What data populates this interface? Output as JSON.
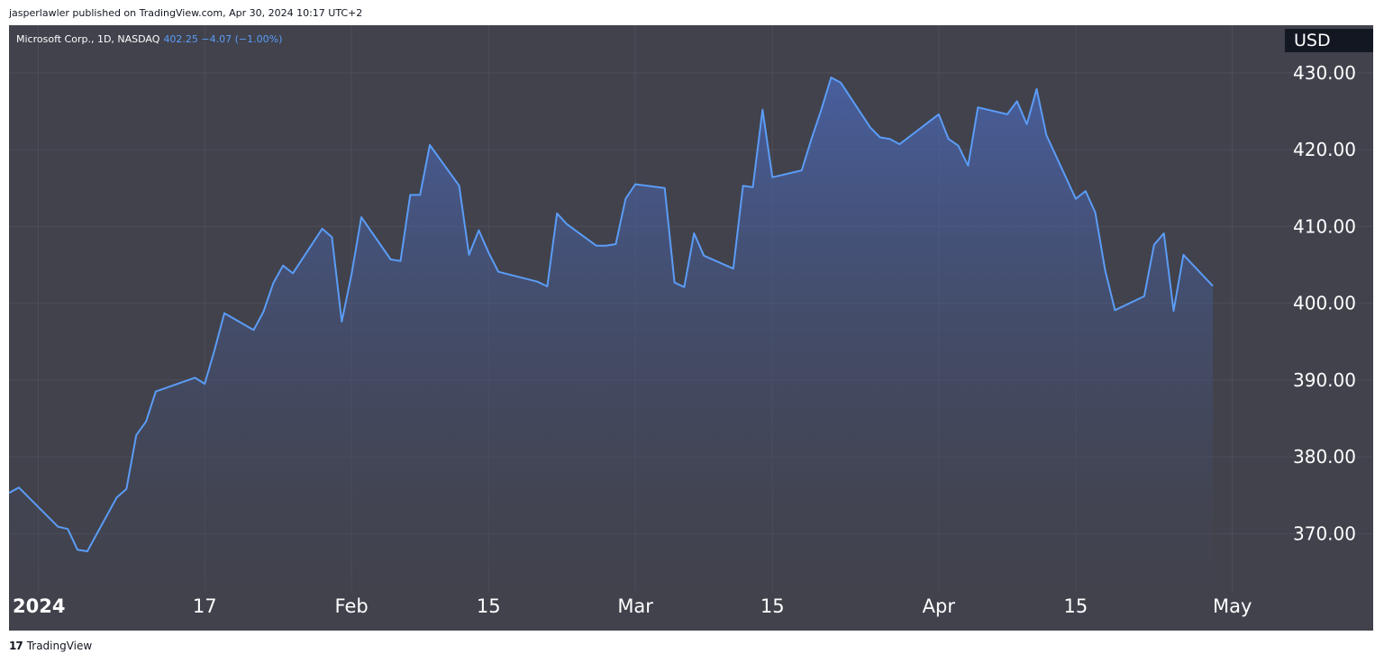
{
  "header": {
    "published_by": "jasperlawler published on TradingView.com, Apr 30, 2024 10:17 UTC+2"
  },
  "legend": {
    "symbol": "Microsoft Corp., 1D, NASDAQ",
    "quote": "402.25  −4.07 (−1.00%)"
  },
  "currency": "USD",
  "footer": {
    "brand": "TradingView",
    "logo_icon": "tradingview-logo-icon"
  },
  "colors": {
    "background": "#41424c",
    "line": "#5b9cf6",
    "grid": "#4d4e58",
    "text": "#ffffff",
    "badge": "#131722"
  },
  "chart_data": {
    "type": "area",
    "title": "",
    "xlabel": "",
    "ylabel": "",
    "x_tick_labels": [
      "2024",
      "17",
      "Feb",
      "15",
      "Mar",
      "15",
      "Apr",
      "15",
      "May"
    ],
    "y_tick_labels": [
      "430.00",
      "420.00",
      "410.00",
      "400.00",
      "390.00",
      "380.00",
      "370.00"
    ],
    "y_ticks": [
      430,
      420,
      410,
      400,
      390,
      380,
      370
    ],
    "ylim": [
      362.3,
      436.2
    ],
    "xlim": [
      "2023-12-28",
      "2024-05-06"
    ],
    "grid": true,
    "series": [
      {
        "values": [
          [
            "2023-12-28",
            375.3
          ],
          [
            "2023-12-29",
            376.0
          ],
          [
            "2024-01-02",
            370.9
          ],
          [
            "2024-01-03",
            370.6
          ],
          [
            "2024-01-04",
            367.9
          ],
          [
            "2024-01-05",
            367.7
          ],
          [
            "2024-01-08",
            374.7
          ],
          [
            "2024-01-09",
            375.8
          ],
          [
            "2024-01-10",
            382.8
          ],
          [
            "2024-01-11",
            384.6
          ],
          [
            "2024-01-12",
            388.5
          ],
          [
            "2024-01-16",
            390.3
          ],
          [
            "2024-01-17",
            389.5
          ],
          [
            "2024-01-18",
            393.9
          ],
          [
            "2024-01-19",
            398.7
          ],
          [
            "2024-01-22",
            396.5
          ],
          [
            "2024-01-23",
            398.9
          ],
          [
            "2024-01-24",
            402.6
          ],
          [
            "2024-01-25",
            404.9
          ],
          [
            "2024-01-26",
            403.9
          ],
          [
            "2024-01-29",
            409.7
          ],
          [
            "2024-01-30",
            408.6
          ],
          [
            "2024-01-31",
            397.6
          ],
          [
            "2024-02-01",
            403.8
          ],
          [
            "2024-02-02",
            411.2
          ],
          [
            "2024-02-05",
            405.7
          ],
          [
            "2024-02-06",
            405.5
          ],
          [
            "2024-02-07",
            414.1
          ],
          [
            "2024-02-08",
            414.1
          ],
          [
            "2024-02-09",
            420.6
          ],
          [
            "2024-02-12",
            415.3
          ],
          [
            "2024-02-13",
            406.3
          ],
          [
            "2024-02-14",
            409.5
          ],
          [
            "2024-02-15",
            406.6
          ],
          [
            "2024-02-16",
            404.1
          ],
          [
            "2024-02-20",
            402.8
          ],
          [
            "2024-02-21",
            402.2
          ],
          [
            "2024-02-22",
            411.7
          ],
          [
            "2024-02-23",
            410.3
          ],
          [
            "2024-02-26",
            407.5
          ],
          [
            "2024-02-27",
            407.5
          ],
          [
            "2024-02-28",
            407.7
          ],
          [
            "2024-02-29",
            413.6
          ],
          [
            "2024-03-01",
            415.5
          ],
          [
            "2024-03-04",
            415.0
          ],
          [
            "2024-03-05",
            402.7
          ],
          [
            "2024-03-06",
            402.1
          ],
          [
            "2024-03-07",
            409.1
          ],
          [
            "2024-03-08",
            406.2
          ],
          [
            "2024-03-11",
            404.5
          ],
          [
            "2024-03-12",
            415.3
          ],
          [
            "2024-03-13",
            415.1
          ],
          [
            "2024-03-14",
            425.2
          ],
          [
            "2024-03-15",
            416.4
          ],
          [
            "2024-03-18",
            417.3
          ],
          [
            "2024-03-19",
            421.4
          ],
          [
            "2024-03-20",
            425.2
          ],
          [
            "2024-03-21",
            429.4
          ],
          [
            "2024-03-22",
            428.7
          ],
          [
            "2024-03-25",
            422.9
          ],
          [
            "2024-03-26",
            421.6
          ],
          [
            "2024-03-27",
            421.4
          ],
          [
            "2024-03-28",
            420.7
          ],
          [
            "2024-04-01",
            424.6
          ],
          [
            "2024-04-02",
            421.4
          ],
          [
            "2024-04-03",
            420.5
          ],
          [
            "2024-04-04",
            417.9
          ],
          [
            "2024-04-05",
            425.5
          ],
          [
            "2024-04-08",
            424.6
          ],
          [
            "2024-04-09",
            426.3
          ],
          [
            "2024-04-10",
            423.3
          ],
          [
            "2024-04-11",
            427.9
          ],
          [
            "2024-04-12",
            421.9
          ],
          [
            "2024-04-15",
            413.6
          ],
          [
            "2024-04-16",
            414.6
          ],
          [
            "2024-04-17",
            411.8
          ],
          [
            "2024-04-18",
            404.3
          ],
          [
            "2024-04-19",
            399.1
          ],
          [
            "2024-04-22",
            400.9
          ],
          [
            "2024-04-23",
            407.6
          ],
          [
            "2024-04-24",
            409.1
          ],
          [
            "2024-04-25",
            399.0
          ],
          [
            "2024-04-26",
            406.3
          ],
          [
            "2024-04-29",
            402.25
          ]
        ]
      }
    ]
  }
}
